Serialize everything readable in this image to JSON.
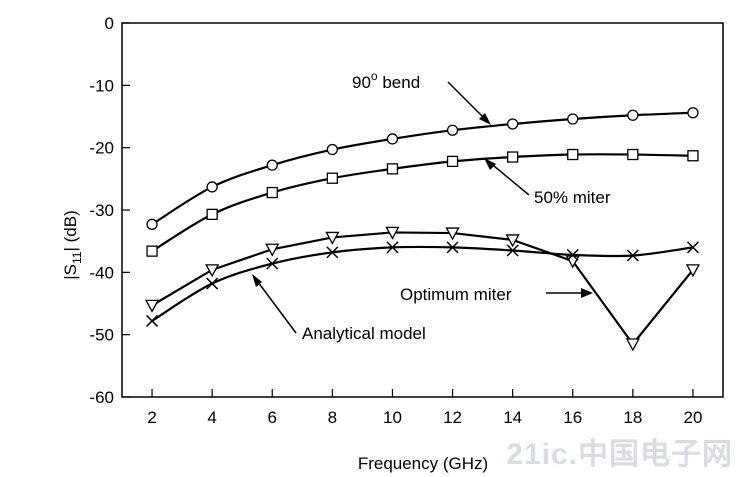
{
  "chart_data": {
    "type": "line",
    "xlabel": "Frequency (GHz)",
    "ylabel": "|S11| (dB)",
    "xlim": [
      1,
      21
    ],
    "ylim": [
      -60,
      0
    ],
    "x": [
      2,
      4,
      6,
      8,
      10,
      12,
      14,
      16,
      18,
      20
    ],
    "xticks": [
      2,
      4,
      6,
      8,
      10,
      12,
      14,
      16,
      18,
      20
    ],
    "yticks": [
      0,
      -10,
      -20,
      -30,
      -40,
      -50,
      -60
    ],
    "grid": false,
    "series": [
      {
        "name": "90° bend",
        "marker": "circle",
        "values": [
          -32.3,
          -26.3,
          -22.8,
          -20.3,
          -18.6,
          -17.2,
          -16.2,
          -15.4,
          -14.8,
          -14.4
        ]
      },
      {
        "name": "50% miter",
        "marker": "square",
        "values": [
          -36.6,
          -30.7,
          -27.2,
          -24.9,
          -23.4,
          -22.2,
          -21.5,
          -21.1,
          -21.1,
          -21.3
        ]
      },
      {
        "name": "Optimum miter",
        "marker": "triangle-down",
        "values": [
          -45.3,
          -39.6,
          -36.3,
          -34.4,
          -33.6,
          -33.7,
          -34.8,
          -38.2,
          -51.5,
          -39.6
        ]
      },
      {
        "name": "Analytical model",
        "marker": "cross",
        "values": [
          -47.8,
          -41.8,
          -38.6,
          -36.8,
          -36.0,
          -36.0,
          -36.5,
          -37.2,
          -37.3,
          -36.0
        ]
      }
    ],
    "annotations": [
      {
        "label": "90",
        "sup": "o",
        "rest": " bend"
      },
      {
        "label": "50% miter"
      },
      {
        "label": "Optimum miter"
      },
      {
        "label": "Analytical model"
      }
    ]
  },
  "watermark": "21ic.中国电子网"
}
